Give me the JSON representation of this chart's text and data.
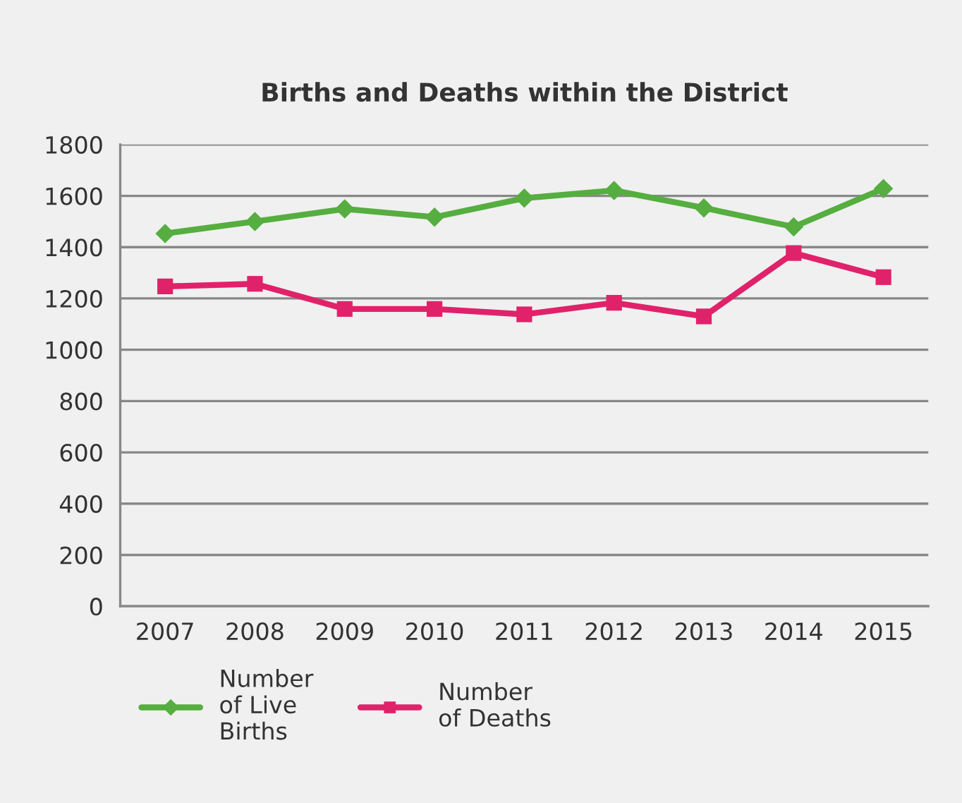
{
  "chart_data": {
    "type": "line",
    "title": "Births and Deaths within the District",
    "categories": [
      "2007",
      "2008",
      "2009",
      "2010",
      "2011",
      "2012",
      "2013",
      "2014",
      "2015"
    ],
    "series": [
      {
        "name": "Number\nof Live\nBirths",
        "color": "#55ae3f",
        "marker": "diamond",
        "values": [
          1453,
          1500,
          1549,
          1517,
          1591,
          1621,
          1553,
          1479,
          1628
        ]
      },
      {
        "name": "Number\nof Deaths",
        "color": "#e0226a",
        "marker": "square",
        "values": [
          1247,
          1257,
          1159,
          1159,
          1138,
          1183,
          1130,
          1377,
          1283
        ]
      }
    ],
    "ylim": [
      0,
      1800
    ],
    "yticks": [
      0,
      200,
      400,
      600,
      800,
      1000,
      1200,
      1400,
      1600,
      1800
    ],
    "grid": "y",
    "legend": "bottom",
    "line_style": "solid"
  }
}
